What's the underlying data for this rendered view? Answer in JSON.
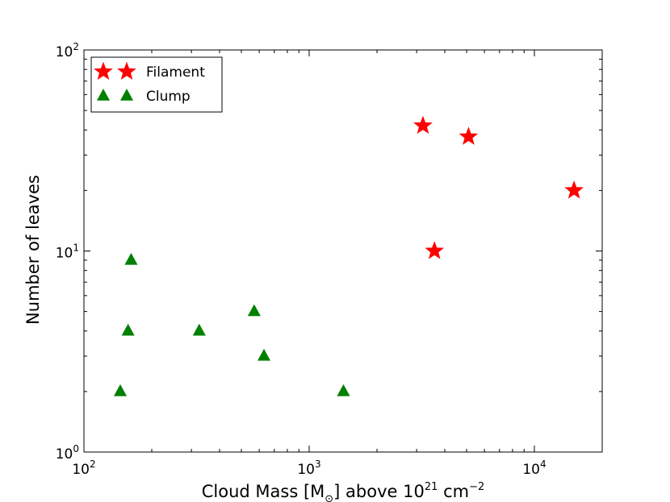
{
  "chart_data": {
    "type": "scatter",
    "title": "",
    "xlabel": {
      "main": "Cloud Mass [M",
      "sub": "⊙",
      "rest": "] above 10",
      "sup": "21",
      "unit": " cm",
      "unit_sup": "−2"
    },
    "ylabel": "Number of leaves",
    "xscale": "log",
    "yscale": "log",
    "xlim": [
      100,
      20000
    ],
    "ylim": [
      1,
      100
    ],
    "x_ticks": [
      {
        "value": 100,
        "base": "10",
        "exp": "2"
      },
      {
        "value": 1000,
        "base": "10",
        "exp": "3"
      },
      {
        "value": 10000,
        "base": "10",
        "exp": "4"
      }
    ],
    "y_ticks": [
      {
        "value": 1,
        "base": "10",
        "exp": "0"
      },
      {
        "value": 10,
        "base": "10",
        "exp": "1"
      },
      {
        "value": 100,
        "base": "10",
        "exp": "2"
      }
    ],
    "legend_position": "top-left",
    "series": [
      {
        "name": "Filament",
        "marker": "star",
        "color": "#ff0000",
        "points": [
          [
            3200,
            42
          ],
          [
            3600,
            10
          ],
          [
            5100,
            37
          ],
          [
            15000,
            20
          ]
        ]
      },
      {
        "name": "Clump",
        "marker": "triangle",
        "color": "#008000",
        "points": [
          [
            145,
            2
          ],
          [
            157,
            4
          ],
          [
            162,
            9
          ],
          [
            325,
            4
          ],
          [
            570,
            5
          ],
          [
            630,
            3
          ],
          [
            1420,
            2
          ]
        ]
      }
    ]
  }
}
